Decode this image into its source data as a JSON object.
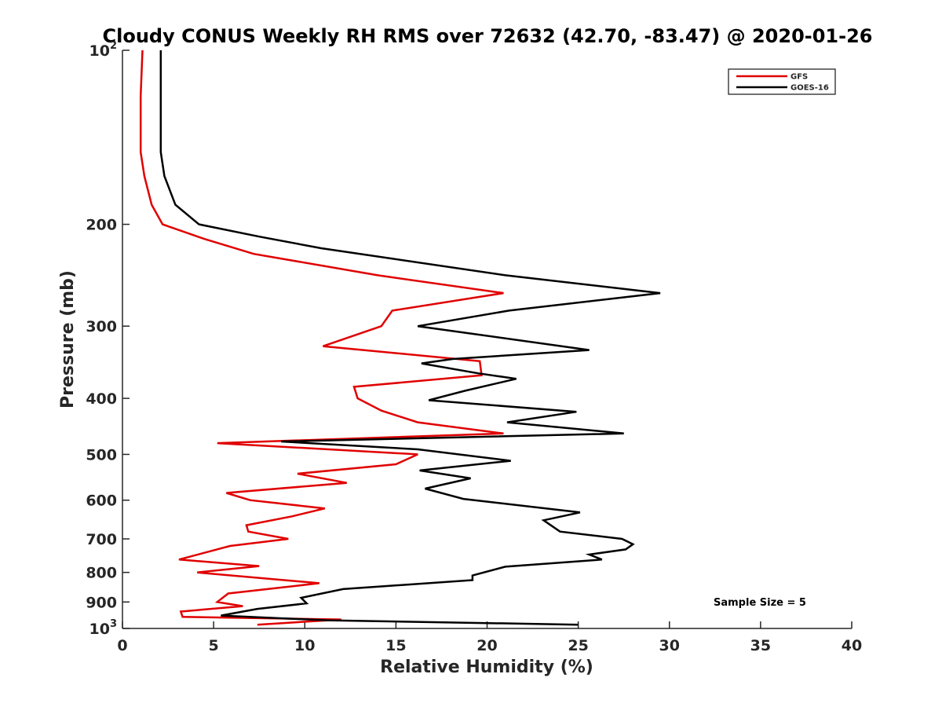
{
  "chart_data": {
    "type": "line",
    "title": "Cloudy CONUS Weekly RH RMS over 72632 (42.70, -83.47) @ 2020-01-26",
    "xlabel": "Relative Humidity (%)",
    "ylabel": "Pressure (mb)",
    "xlim": [
      0,
      40
    ],
    "ylim": [
      100,
      1000
    ],
    "y_scale": "log",
    "y_reversed": true,
    "x_ticks": [
      "0",
      "5",
      "10",
      "15",
      "20",
      "25",
      "30",
      "35",
      "40"
    ],
    "y_ticks": [
      {
        "value": 100,
        "base": "10",
        "exp": "2"
      },
      {
        "value": 200,
        "label": "200"
      },
      {
        "value": 300,
        "label": "300"
      },
      {
        "value": 400,
        "label": "400"
      },
      {
        "value": 500,
        "label": "500"
      },
      {
        "value": 600,
        "label": "600"
      },
      {
        "value": 700,
        "label": "700"
      },
      {
        "value": 800,
        "label": "800"
      },
      {
        "value": 900,
        "label": "900"
      },
      {
        "value": 1000,
        "base": "10",
        "exp": "3"
      }
    ],
    "grid": false,
    "legend_position": "top-right",
    "annotation": "Sample Size = 5",
    "series": [
      {
        "name": "GFS",
        "color": "#e00000",
        "points": [
          [
            1.1,
            100
          ],
          [
            1.0,
            120
          ],
          [
            1.0,
            150
          ],
          [
            1.2,
            165
          ],
          [
            1.6,
            185
          ],
          [
            2.2,
            200
          ],
          [
            4.5,
            212
          ],
          [
            7.2,
            225
          ],
          [
            14.0,
            245
          ],
          [
            20.9,
            263
          ],
          [
            14.8,
            282
          ],
          [
            14.2,
            300
          ],
          [
            11.0,
            325
          ],
          [
            19.6,
            345
          ],
          [
            19.7,
            365
          ],
          [
            12.7,
            382
          ],
          [
            12.9,
            400
          ],
          [
            14.2,
            420
          ],
          [
            16.2,
            440
          ],
          [
            20.9,
            460
          ],
          [
            5.2,
            478
          ],
          [
            16.2,
            500
          ],
          [
            15.0,
            520
          ],
          [
            9.6,
            540
          ],
          [
            12.3,
            560
          ],
          [
            5.7,
            583
          ],
          [
            7.0,
            600
          ],
          [
            11.1,
            620
          ],
          [
            9.3,
            640
          ],
          [
            6.8,
            663
          ],
          [
            6.9,
            680
          ],
          [
            9.1,
            700
          ],
          [
            5.9,
            720
          ],
          [
            3.1,
            760
          ],
          [
            7.5,
            780
          ],
          [
            4.1,
            800
          ],
          [
            10.8,
            835
          ],
          [
            5.8,
            870
          ],
          [
            5.2,
            900
          ],
          [
            6.6,
            915
          ],
          [
            3.2,
            935
          ],
          [
            3.3,
            955
          ],
          [
            12.0,
            965
          ],
          [
            7.4,
            985
          ]
        ]
      },
      {
        "name": "GOES-16",
        "color": "#000000",
        "points": [
          [
            2.1,
            100
          ],
          [
            2.1,
            120
          ],
          [
            2.1,
            150
          ],
          [
            2.3,
            165
          ],
          [
            2.9,
            185
          ],
          [
            4.2,
            200
          ],
          [
            7.5,
            210
          ],
          [
            10.9,
            220
          ],
          [
            21.0,
            245
          ],
          [
            29.5,
            263
          ],
          [
            21.2,
            282
          ],
          [
            16.2,
            300
          ],
          [
            25.6,
            330
          ],
          [
            18.1,
            342
          ],
          [
            16.4,
            348
          ],
          [
            19.5,
            362
          ],
          [
            21.6,
            370
          ],
          [
            18.8,
            388
          ],
          [
            16.8,
            403
          ],
          [
            24.9,
            422
          ],
          [
            21.1,
            440
          ],
          [
            27.5,
            460
          ],
          [
            8.7,
            475
          ],
          [
            16.2,
            490
          ],
          [
            21.3,
            513
          ],
          [
            16.3,
            533
          ],
          [
            19.1,
            550
          ],
          [
            16.6,
            573
          ],
          [
            18.7,
            597
          ],
          [
            25.1,
            630
          ],
          [
            23.1,
            650
          ],
          [
            24.0,
            680
          ],
          [
            27.4,
            700
          ],
          [
            28.0,
            715
          ],
          [
            27.6,
            730
          ],
          [
            25.6,
            745
          ],
          [
            26.3,
            760
          ],
          [
            21.0,
            782
          ],
          [
            19.2,
            810
          ],
          [
            19.2,
            825
          ],
          [
            12.1,
            855
          ],
          [
            9.8,
            885
          ],
          [
            10.1,
            905
          ],
          [
            7.4,
            925
          ],
          [
            5.4,
            950
          ],
          [
            11.2,
            968
          ],
          [
            25.0,
            985
          ]
        ]
      }
    ]
  }
}
